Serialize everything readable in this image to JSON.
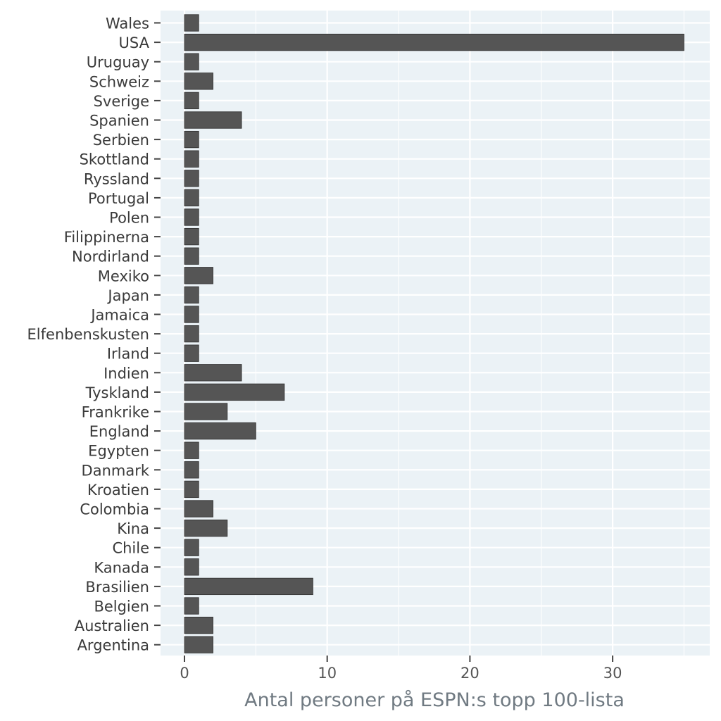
{
  "chart_data": {
    "type": "bar",
    "orientation": "horizontal",
    "categories": [
      "Wales",
      "USA",
      "Uruguay",
      "Schweiz",
      "Sverige",
      "Spanien",
      "Serbien",
      "Skottland",
      "Ryssland",
      "Portugal",
      "Polen",
      "Filippinerna",
      "Nordirland",
      "Mexiko",
      "Japan",
      "Jamaica",
      "Elfenbenskusten",
      "Irland",
      "Indien",
      "Tyskland",
      "Frankrike",
      "England",
      "Egypten",
      "Danmark",
      "Kroatien",
      "Colombia",
      "Kina",
      "Chile",
      "Kanada",
      "Brasilien",
      "Belgien",
      "Australien",
      "Argentina"
    ],
    "values": [
      1,
      35,
      1,
      2,
      1,
      4,
      1,
      1,
      1,
      1,
      1,
      1,
      1,
      2,
      1,
      1,
      1,
      1,
      4,
      7,
      3,
      5,
      1,
      1,
      1,
      2,
      3,
      1,
      1,
      9,
      1,
      2,
      2
    ],
    "title": "",
    "xlabel": "Antal personer på ESPN:s topp 100-lista",
    "ylabel": "",
    "xlim": [
      0,
      36.5
    ],
    "xticks": [
      0,
      10,
      20,
      30
    ],
    "xtick_labels": [
      "0",
      "10",
      "20",
      "30"
    ],
    "grid": true,
    "colors": {
      "bar": "#555555",
      "panel": "#ebf2f6",
      "grid": "#ffffff"
    }
  }
}
